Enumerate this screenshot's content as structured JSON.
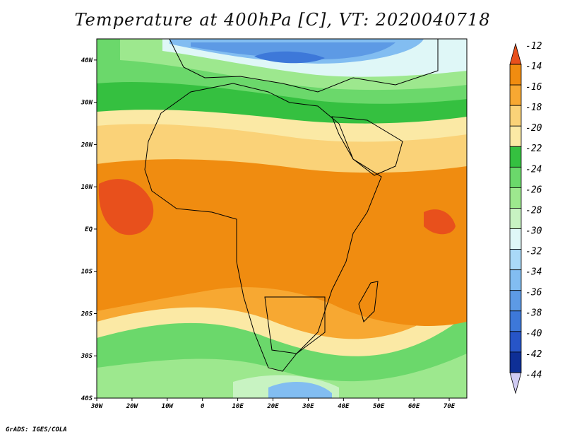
{
  "title": "Temperature at 400hPa [C], VT: 2020040718",
  "credit": "GrADS: IGES/COLA",
  "map": {
    "lon_range": [
      -30,
      75
    ],
    "lat_range": [
      -40,
      45
    ],
    "lon_ticks": [
      "30W",
      "20W",
      "10W",
      "0",
      "10E",
      "20E",
      "30E",
      "40E",
      "50E",
      "60E",
      "70E"
    ],
    "lat_ticks": [
      "40N",
      "30N",
      "20N",
      "10N",
      "EQ",
      "10S",
      "20S",
      "30S",
      "40S"
    ],
    "colors": {
      "c_m12": "#e8501c",
      "c_m14": "#f08c10",
      "c_m16": "#f7a832",
      "c_m18": "#fad278",
      "c_m20": "#fbe9a5",
      "c_m22": "#35c040",
      "c_m24": "#6bd86b",
      "c_m26": "#9de88e",
      "c_m28": "#c8f3c2",
      "c_m30": "#dff7f7",
      "c_m32": "#a9d9f8",
      "c_m34": "#82bdf1",
      "c_m36": "#5d9ae5",
      "c_m38": "#3d78d9",
      "c_m40": "#2755c8",
      "c_m42": "#0e2f96",
      "c_m44": "#d0cbf3"
    }
  },
  "colorbar": {
    "labels": [
      "-12",
      "-14",
      "-16",
      "-18",
      "-20",
      "-22",
      "-24",
      "-26",
      "-28",
      "-30",
      "-32",
      "-34",
      "-36",
      "-38",
      "-40",
      "-42",
      "-44"
    ],
    "colors": [
      "#e8501c",
      "#f08c10",
      "#f7a832",
      "#fad278",
      "#fbe9a5",
      "#35c040",
      "#6bd86b",
      "#9de88e",
      "#c8f3c2",
      "#dff7f7",
      "#a9d9f8",
      "#82bdf1",
      "#5d9ae5",
      "#3d78d9",
      "#2755c8",
      "#0e2f96",
      "#d0cbf3"
    ]
  }
}
